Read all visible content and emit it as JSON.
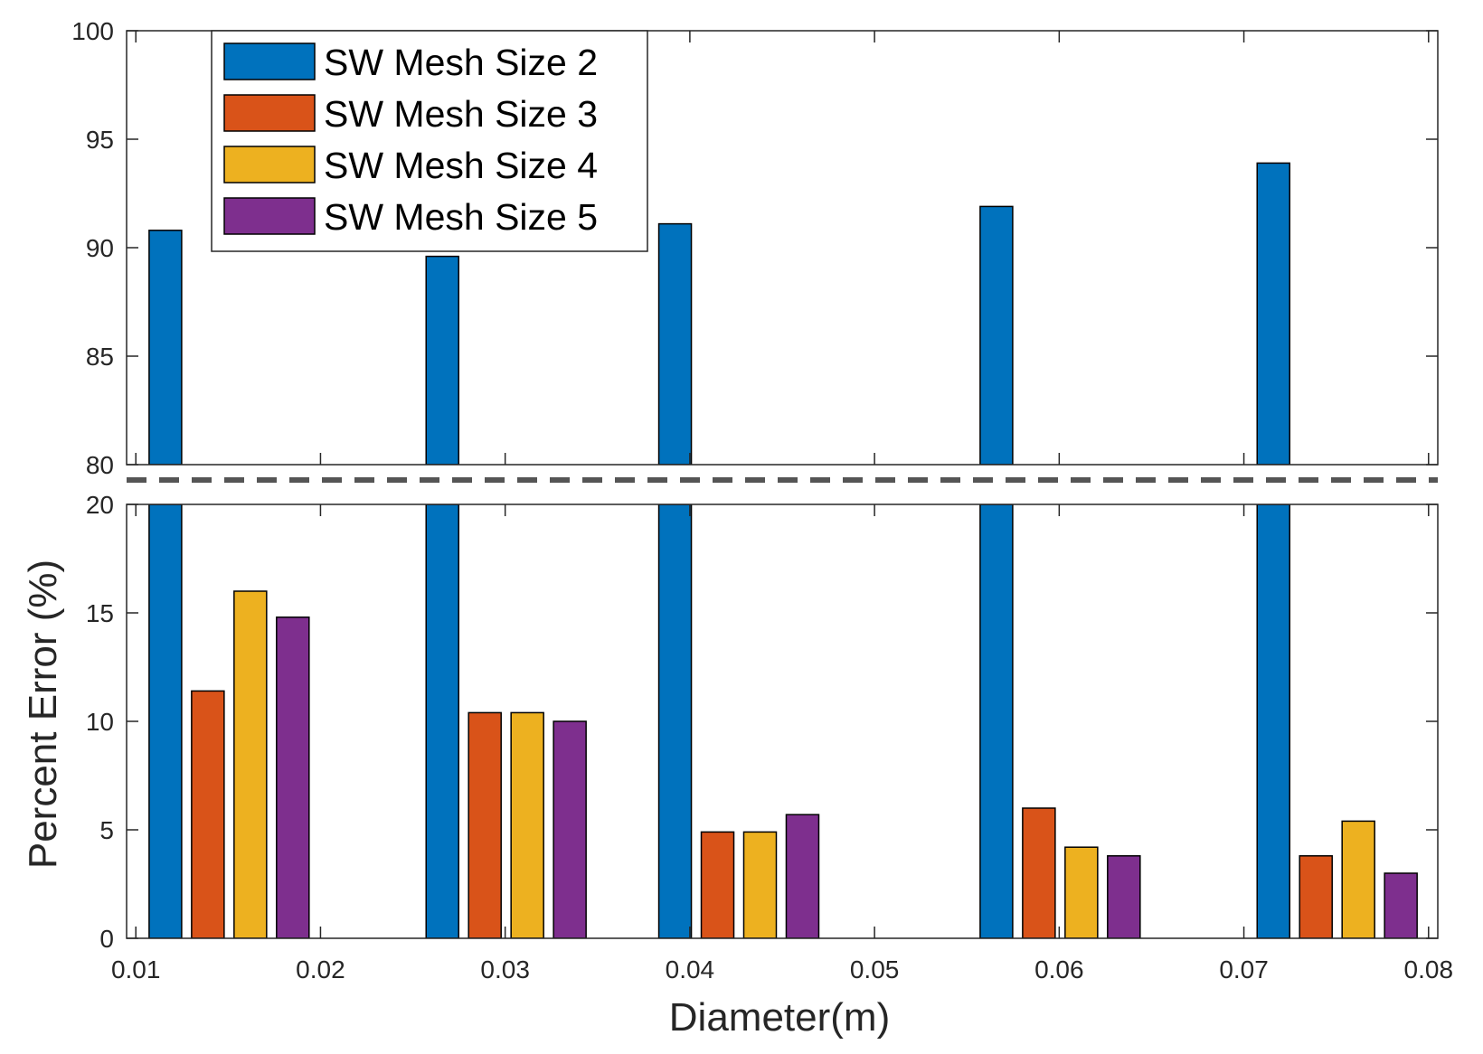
{
  "chart_data": {
    "type": "bar",
    "xlabel": "Diameter(m)",
    "ylabel": "Percent Error (%)",
    "broken_y_axis": true,
    "upper_panel_ylim": [
      80,
      100
    ],
    "lower_panel_ylim": [
      0,
      20
    ],
    "xlim": [
      0.0095,
      0.0805
    ],
    "x_ticks": [
      "0.01",
      "0.02",
      "0.03",
      "0.04",
      "0.05",
      "0.06",
      "0.07",
      "0.08"
    ],
    "upper_y_ticks": [
      "80",
      "85",
      "90",
      "95",
      "100"
    ],
    "lower_y_ticks": [
      "0",
      "5",
      "10",
      "15",
      "20"
    ],
    "legend_position": "top-left",
    "grid": false,
    "series": [
      {
        "name": "SW Mesh Size 2",
        "color": "#0072BD",
        "x": [
          0.0116,
          0.0266,
          0.0392,
          0.0566,
          0.0716
        ],
        "values": [
          90.8,
          89.6,
          91.1,
          91.9,
          93.9
        ]
      },
      {
        "name": "SW Mesh Size 3",
        "color": "#D95319",
        "x": [
          0.0139,
          0.0289,
          0.0415,
          0.0589,
          0.0739
        ],
        "values": [
          11.4,
          10.4,
          4.9,
          6.0,
          3.8
        ]
      },
      {
        "name": "SW Mesh Size 4",
        "color": "#EDB120",
        "x": [
          0.0162,
          0.0312,
          0.0438,
          0.0612,
          0.0762
        ],
        "values": [
          16.0,
          10.4,
          4.9,
          4.2,
          5.4
        ]
      },
      {
        "name": "SW Mesh Size 5",
        "color": "#7E2F8E",
        "x": [
          0.0185,
          0.0335,
          0.0461,
          0.0635,
          0.0785
        ],
        "values": [
          14.8,
          10.0,
          5.7,
          3.8,
          3.0
        ]
      }
    ]
  }
}
